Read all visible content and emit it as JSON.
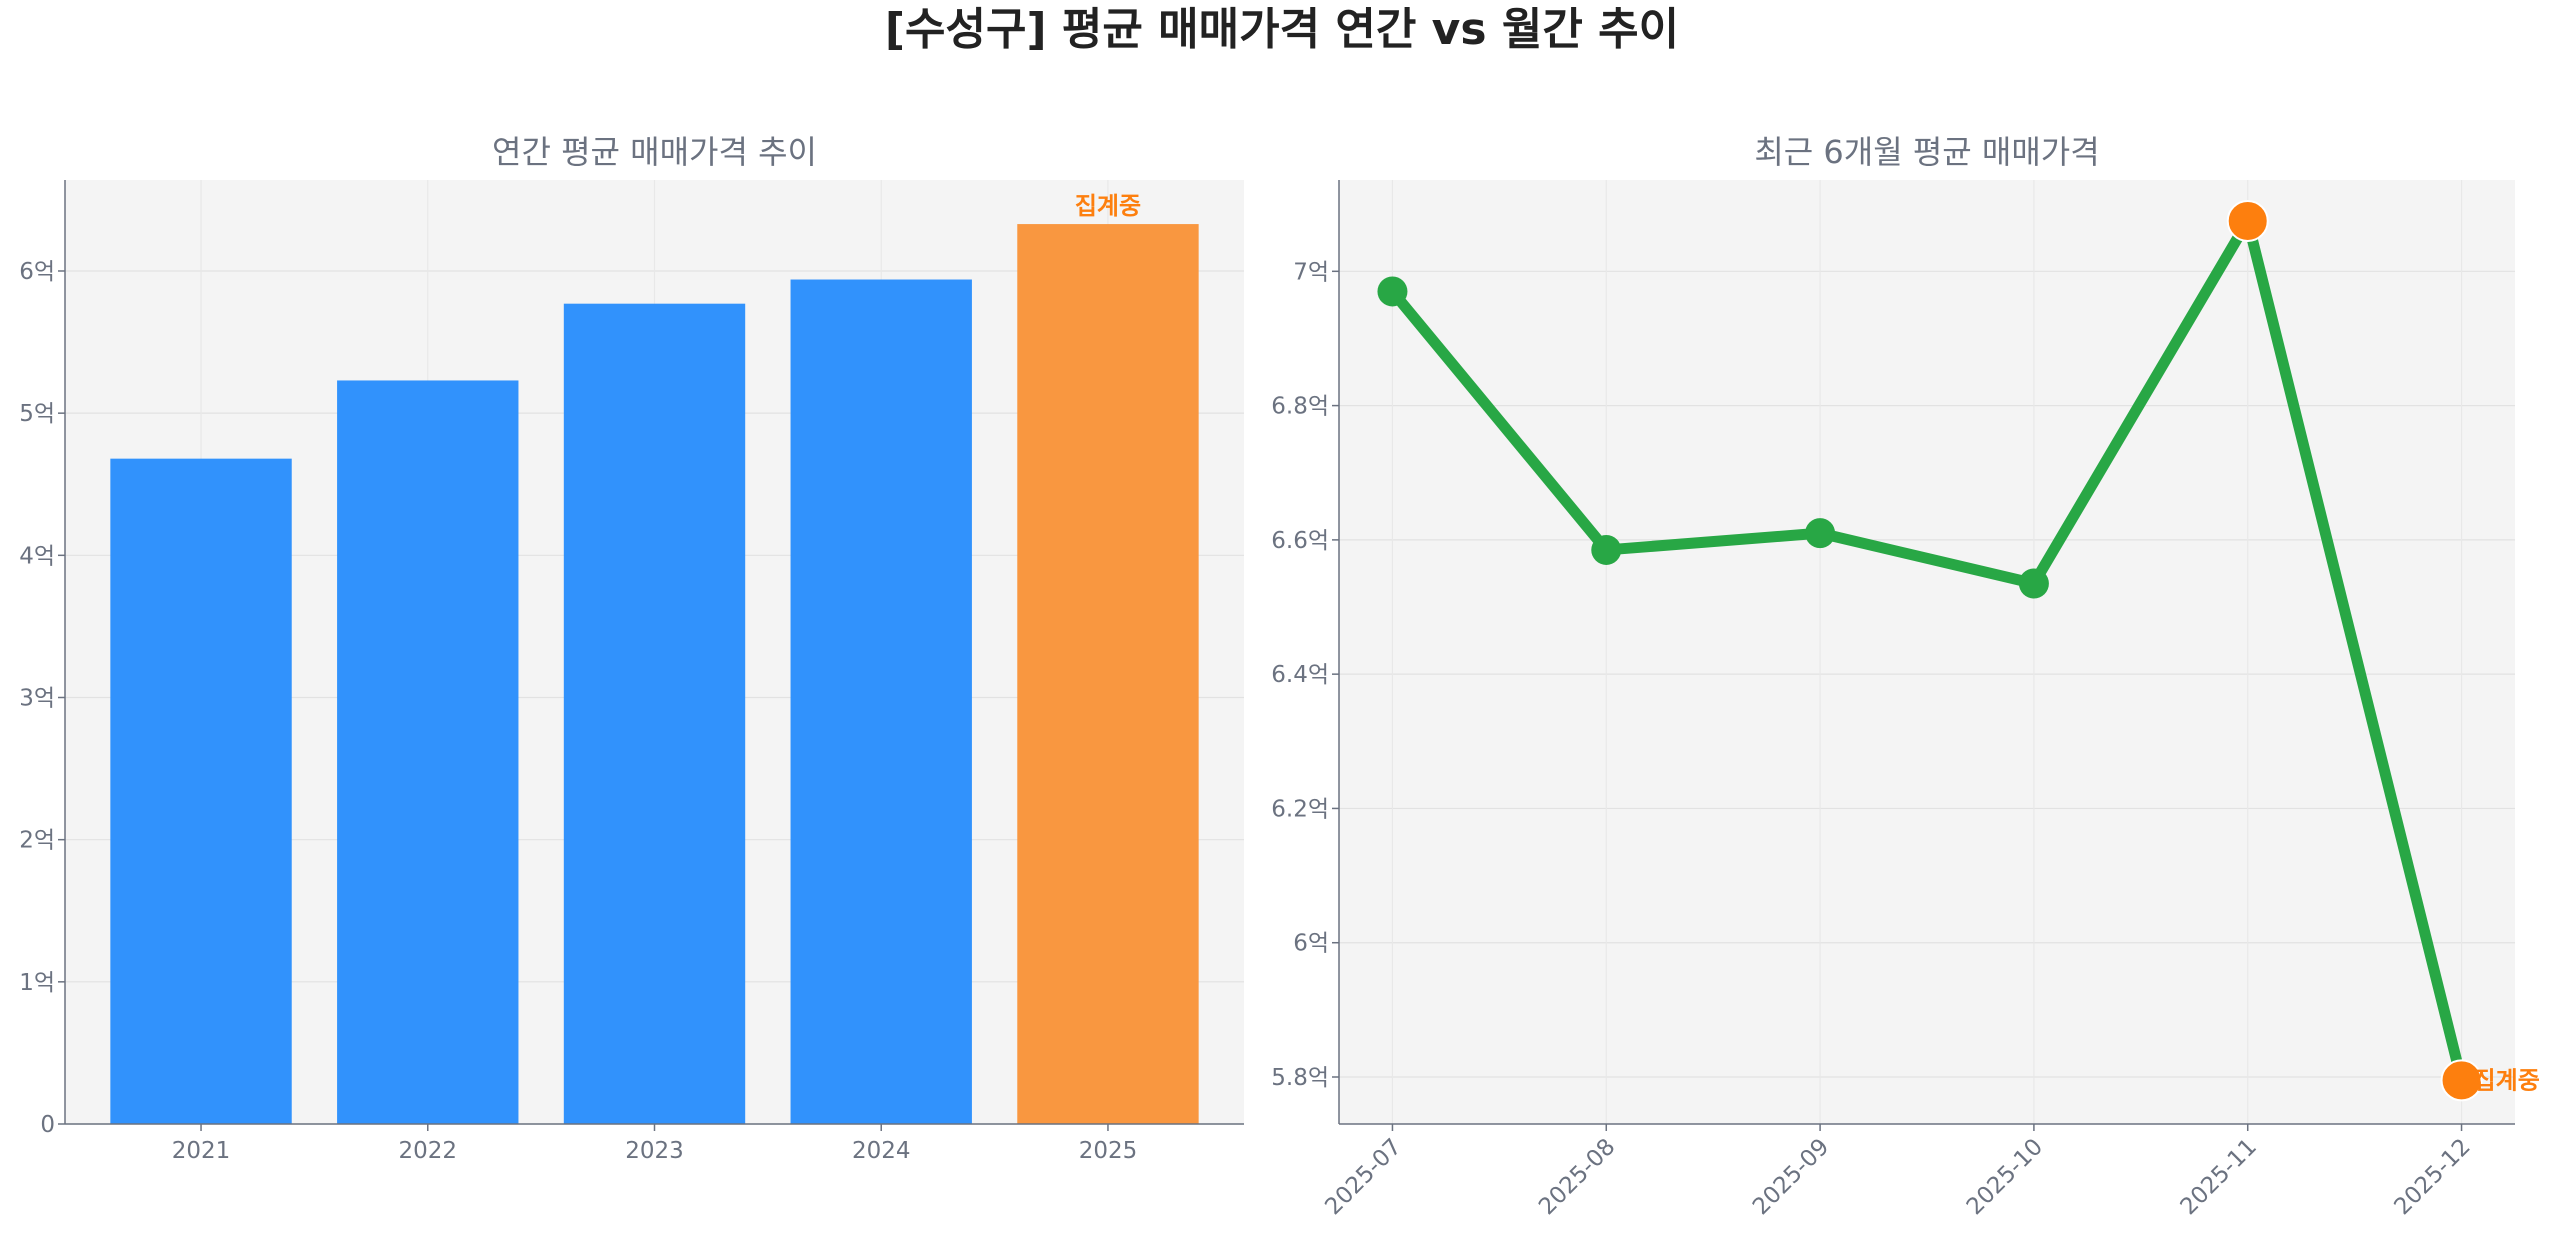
{
  "title": "[수성구] 평균 매매가격 연간 vs 월간 추이",
  "colors": {
    "bar": "#3192fc",
    "bar_current": "#f99740",
    "line": "#28a745",
    "marker_highlight": "#fd7f0e",
    "note": "#fd7f0e",
    "axes_bg": "#f4f4f4"
  },
  "chart_data": [
    {
      "type": "bar",
      "title": "연간 평균 매매가격 추이",
      "categories": [
        "2021",
        "2022",
        "2023",
        "2024",
        "2025"
      ],
      "values": [
        4.68,
        5.23,
        5.77,
        5.94,
        6.33
      ],
      "unit": "억",
      "ylim": [
        0,
        6.64
      ],
      "yticks": [
        0,
        1,
        2,
        3,
        4,
        5,
        6
      ],
      "ytick_labels": [
        "0",
        "1억",
        "2억",
        "3억",
        "4억",
        "5억",
        "6억"
      ],
      "highlight_index": 4,
      "annotation": {
        "index": 4,
        "text": "집계중"
      },
      "grid": true
    },
    {
      "type": "line",
      "title": "최근 6개월 평균 매매가격",
      "categories": [
        "2025-07",
        "2025-08",
        "2025-09",
        "2025-10",
        "2025-11",
        "2025-12"
      ],
      "values": [
        6.97,
        6.585,
        6.61,
        6.535,
        7.075,
        5.795
      ],
      "unit": "억",
      "ylim": [
        5.73,
        7.136
      ],
      "yticks": [
        5.8,
        6.0,
        6.2,
        6.4,
        6.6,
        6.8,
        7.0
      ],
      "ytick_labels": [
        "5.8억",
        "6억",
        "6.2억",
        "6.4억",
        "6.6억",
        "6.8억",
        "7억"
      ],
      "highlight_indices": [
        4,
        5
      ],
      "annotation": {
        "index": 5,
        "text": "집계중"
      },
      "grid": true
    }
  ]
}
